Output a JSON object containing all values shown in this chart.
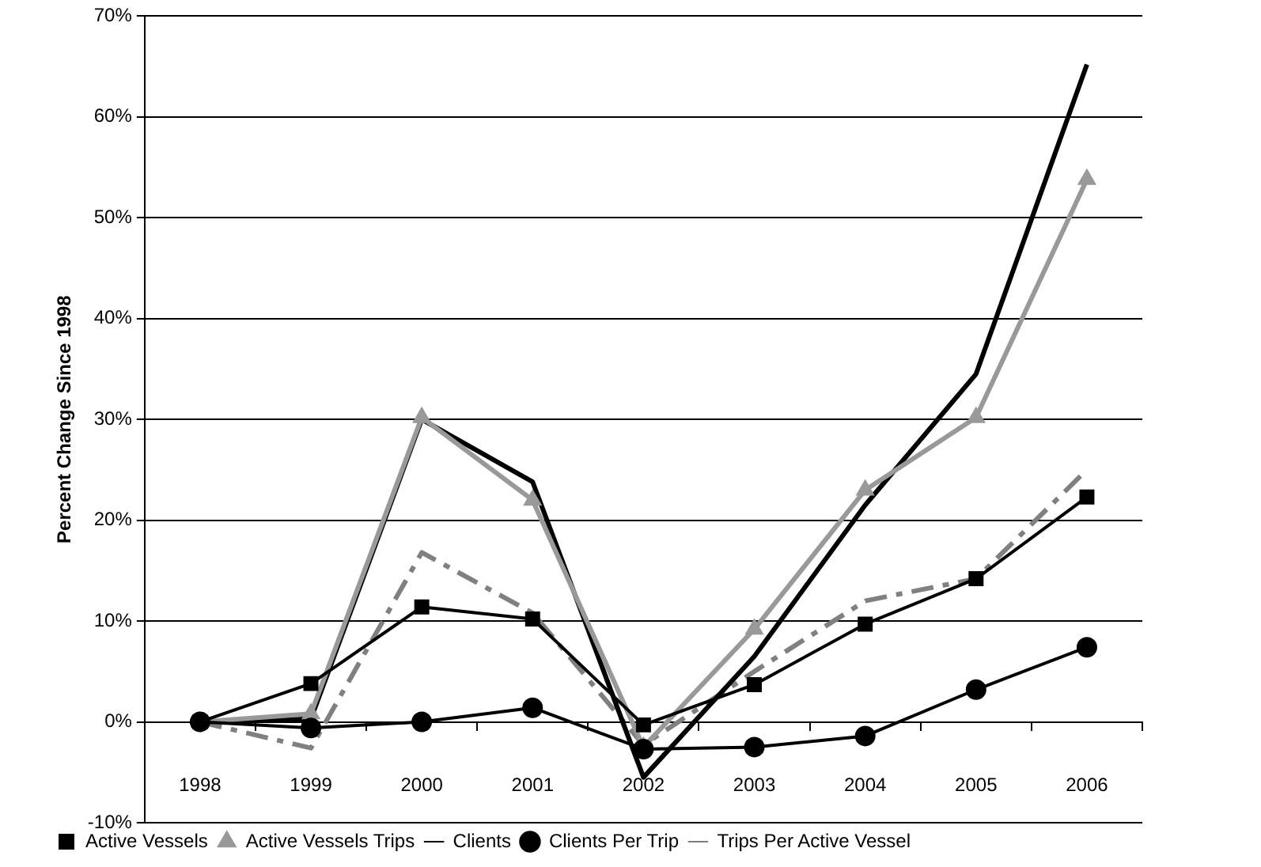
{
  "chart_data": {
    "type": "line",
    "ylabel": "Percent Change Since 1998",
    "categories": [
      "1998",
      "1999",
      "2000",
      "2001",
      "2002",
      "2003",
      "2004",
      "2005",
      "2006"
    ],
    "series": [
      {
        "name": "Active Vessels",
        "color": "#000000",
        "marker": "square",
        "line_style": "solid",
        "values": [
          0,
          3.8,
          11.4,
          10.2,
          -0.3,
          3.7,
          9.7,
          14.2,
          22.3
        ]
      },
      {
        "name": "Active Vessels Trips",
        "color": "#999999",
        "marker": "triangle",
        "line_style": "solid",
        "values": [
          0,
          0.8,
          30.2,
          22,
          -2.5,
          9.2,
          23,
          30.2,
          53.8
        ]
      },
      {
        "name": "Clients",
        "color": "#000000",
        "marker": "none",
        "line_style": "solid",
        "values": [
          0,
          0.3,
          30,
          23.8,
          -5.5,
          6.5,
          21.5,
          34.5,
          65.2
        ]
      },
      {
        "name": "Clients Per Trip",
        "color": "#000000",
        "marker": "circle",
        "line_style": "solid",
        "values": [
          0,
          -0.6,
          0,
          1.4,
          -2.7,
          -2.5,
          -1.4,
          3.2,
          7.4
        ]
      },
      {
        "name": "Trips Per Active Vessel",
        "color": "#808080",
        "marker": "none",
        "line_style": "dashed",
        "values": [
          0,
          -2.6,
          16.8,
          10.8,
          -2.3,
          5,
          12,
          14.2,
          25
        ]
      }
    ],
    "ylim": [
      -10,
      70
    ],
    "yticks": [
      {
        "value": -10,
        "label": "-10%"
      },
      {
        "value": 0,
        "label": "0%"
      },
      {
        "value": 10,
        "label": "10%"
      },
      {
        "value": 20,
        "label": "20%"
      },
      {
        "value": 30,
        "label": "30%"
      },
      {
        "value": 40,
        "label": "40%"
      },
      {
        "value": 50,
        "label": "50%"
      },
      {
        "value": 60,
        "label": "60%"
      },
      {
        "value": 70,
        "label": "70%"
      }
    ],
    "grid": "y",
    "legend": "bottom"
  }
}
